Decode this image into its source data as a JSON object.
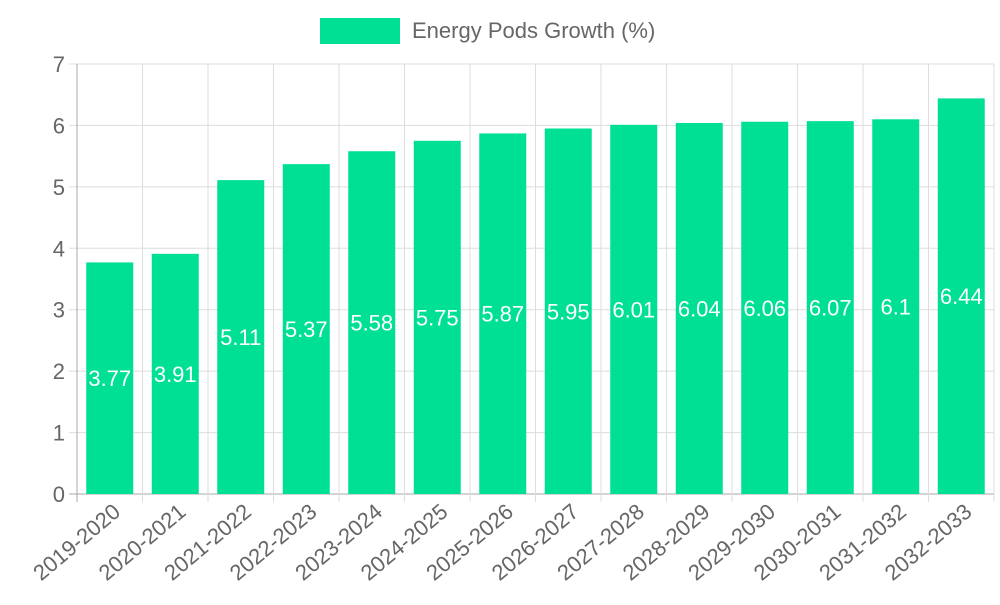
{
  "chart_data": {
    "type": "bar",
    "title": "",
    "xlabel": "",
    "ylabel": "",
    "categories": [
      "2019-2020",
      "2020-2021",
      "2021-2022",
      "2022-2023",
      "2023-2024",
      "2024-2025",
      "2025-2026",
      "2026-2027",
      "2027-2028",
      "2028-2029",
      "2029-2030",
      "2030-2031",
      "2031-2032",
      "2032-2033"
    ],
    "series": [
      {
        "name": "Energy Pods Growth (%)",
        "values": [
          3.77,
          3.91,
          5.11,
          5.37,
          5.58,
          5.75,
          5.87,
          5.95,
          6.01,
          6.04,
          6.06,
          6.07,
          6.1,
          6.44
        ],
        "value_labels": [
          "3.77",
          "3.91",
          "5.11",
          "5.37",
          "5.58",
          "5.75",
          "5.87",
          "5.95",
          "6.01",
          "6.04",
          "6.06",
          "6.07",
          "6.1",
          "6.44"
        ]
      }
    ],
    "ylim": [
      0,
      7
    ],
    "yticks": [
      "0",
      "1",
      "2",
      "3",
      "4",
      "5",
      "6",
      "7"
    ],
    "grid": true,
    "legend_position": "top-center"
  },
  "colors": {
    "bar": "#00e094",
    "grid": "#dddddd",
    "axis": "#aaaaaa",
    "tick_text": "#666666",
    "data_label": "#ffffff"
  }
}
